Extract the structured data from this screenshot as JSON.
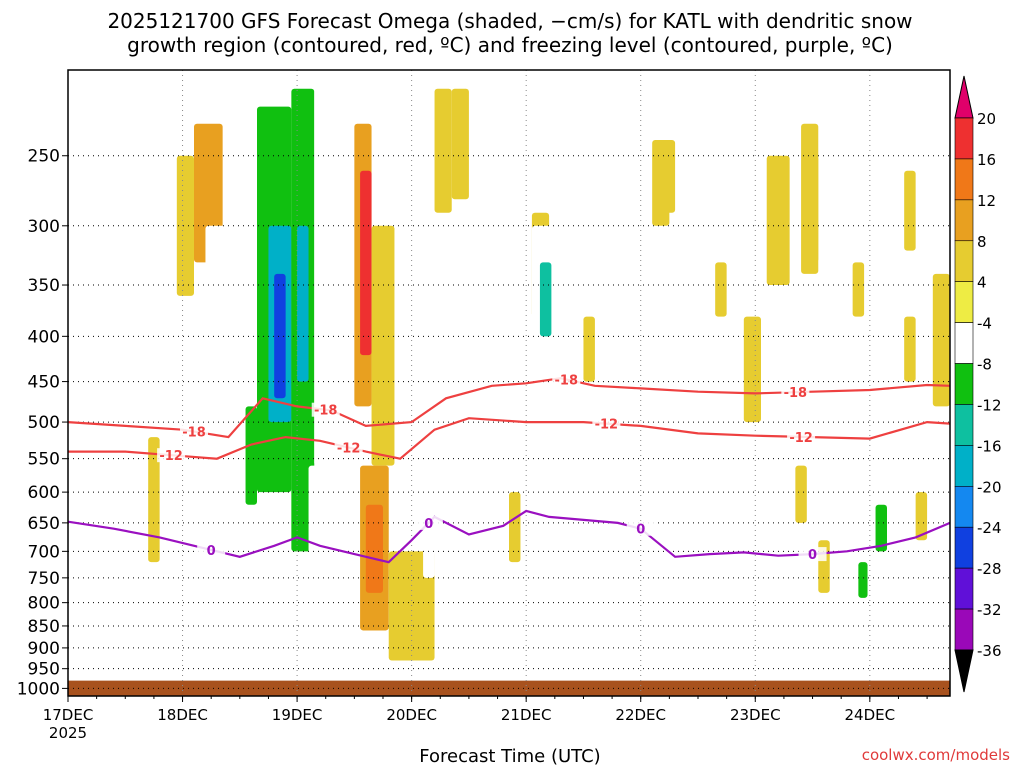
{
  "chart_data": {
    "type": "heatmap",
    "title_line1": "2025121700 GFS Forecast Omega (shaded, −cm/s) for KATL with dendritic snow",
    "title_line2": "growth region (contoured, red, ºC) and freezing level (contoured, purple, ºC)",
    "xlabel": "Forecast Time (UTC)",
    "ylabel": "",
    "credit": "coolwx.com/models",
    "x_ticks": [
      "17DEC",
      "18DEC",
      "19DEC",
      "20DEC",
      "21DEC",
      "22DEC",
      "23DEC",
      "24DEC"
    ],
    "x_year": "2025",
    "xlim_days": [
      0,
      7.7
    ],
    "y_ticks": [
      "250",
      "300",
      "350",
      "400",
      "450",
      "500",
      "550",
      "600",
      "650",
      "700",
      "750",
      "800",
      "850",
      "900",
      "950",
      "1000"
    ],
    "y_tick_values": [
      250,
      300,
      350,
      400,
      450,
      500,
      550,
      600,
      650,
      700,
      750,
      800,
      850,
      900,
      950,
      1000
    ],
    "ylim_hpa": [
      200,
      1020
    ],
    "y_scale": "log-pressure",
    "grid": "dotted",
    "colorbar": {
      "labels": [
        "20",
        "16",
        "12",
        "8",
        "4",
        "-4",
        "-8",
        "-12",
        "-16",
        "-20",
        "-24",
        "-28",
        "-32",
        "-36"
      ],
      "colors": [
        "#e0006a",
        "#ee3030",
        "#f07818",
        "#e8a020",
        "#e6cc30",
        "#eeec44",
        "#ffffff",
        "#10c010",
        "#0ec0a0",
        "#00b0c8",
        "#1488f0",
        "#1040e0",
        "#6010d8",
        "#9a08b8",
        "#a8a8a8",
        "#000000"
      ]
    },
    "contours": {
      "minus18": {
        "label": "-18",
        "color": "#ee4040",
        "x": [
          0,
          0.5,
          1.0,
          1.4,
          1.7,
          2.0,
          2.3,
          2.6,
          3.0,
          3.3,
          3.7,
          4.0,
          4.3,
          4.6,
          5.0,
          5.5,
          6.0,
          6.5,
          7.0,
          7.5,
          7.7
        ],
        "y": [
          500,
          505,
          510,
          520,
          470,
          480,
          485,
          505,
          500,
          470,
          455,
          452,
          446,
          455,
          458,
          462,
          464,
          462,
          460,
          454,
          455
        ],
        "label_x": [
          1.1,
          2.25,
          4.35,
          6.35
        ]
      },
      "minus12": {
        "label": "-12",
        "color": "#ee4040",
        "x": [
          0,
          0.5,
          0.9,
          1.3,
          1.6,
          1.9,
          2.2,
          2.6,
          2.9,
          3.2,
          3.5,
          4.0,
          4.5,
          5.0,
          5.5,
          6.0,
          6.5,
          7.0,
          7.5,
          7.7
        ],
        "y": [
          540,
          540,
          545,
          550,
          530,
          520,
          525,
          540,
          550,
          510,
          495,
          500,
          500,
          505,
          515,
          518,
          520,
          522,
          500,
          502
        ],
        "label_x": [
          0.9,
          2.45,
          4.7,
          6.4
        ]
      },
      "freezing_0C": {
        "label": "0",
        "color": "#9a10c0",
        "x": [
          0,
          0.4,
          0.8,
          1.2,
          1.5,
          1.8,
          2.0,
          2.2,
          2.5,
          2.8,
          3.0,
          3.2,
          3.5,
          3.8,
          4.0,
          4.2,
          4.5,
          4.8,
          5.0,
          5.3,
          5.6,
          5.9,
          6.2,
          6.5,
          6.8,
          7.1,
          7.4,
          7.7
        ],
        "y": [
          648,
          660,
          675,
          695,
          710,
          690,
          675,
          690,
          705,
          720,
          680,
          640,
          670,
          655,
          630,
          640,
          645,
          650,
          660,
          710,
          705,
          702,
          708,
          705,
          700,
          690,
          675,
          650
        ],
        "label_x": [
          1.25,
          3.15,
          5.0,
          6.5
        ]
      }
    },
    "omega_cells": [
      {
        "x0": 0.2,
        "x1": 0.45,
        "p0": 220,
        "p1": 420,
        "v": -6
      },
      {
        "x0": 0.55,
        "x1": 0.85,
        "p0": 240,
        "p1": 380,
        "v": -6
      },
      {
        "x0": 0.25,
        "x1": 0.35,
        "p0": 560,
        "p1": 860,
        "v": -6
      },
      {
        "x0": 0.95,
        "x1": 1.1,
        "p0": 250,
        "p1": 360,
        "v": 6
      },
      {
        "x0": 1.1,
        "x1": 1.35,
        "p0": 230,
        "p1": 330,
        "v": 10
      },
      {
        "x0": 1.2,
        "x1": 1.4,
        "p0": 300,
        "p1": 470,
        "v": -6
      },
      {
        "x0": 1.4,
        "x1": 1.65,
        "p0": 220,
        "p1": 520,
        "v": -8
      },
      {
        "x0": 1.55,
        "x1": 1.65,
        "p0": 480,
        "p1": 620,
        "v": -10
      },
      {
        "x0": 1.65,
        "x1": 1.95,
        "p0": 220,
        "p1": 600,
        "v": -12
      },
      {
        "x0": 1.75,
        "x1": 1.95,
        "p0": 300,
        "p1": 500,
        "v": -18
      },
      {
        "x0": 1.8,
        "x1": 1.9,
        "p0": 340,
        "p1": 470,
        "v": -26
      },
      {
        "x0": 1.95,
        "x1": 2.15,
        "p0": 210,
        "p1": 700,
        "v": -10
      },
      {
        "x0": 2.0,
        "x1": 2.1,
        "p0": 300,
        "p1": 450,
        "v": -20
      },
      {
        "x0": 2.15,
        "x1": 2.4,
        "p0": 210,
        "p1": 560,
        "v": -8
      },
      {
        "x0": 2.1,
        "x1": 2.2,
        "p0": 560,
        "p1": 900,
        "v": -6
      },
      {
        "x0": 2.45,
        "x1": 2.55,
        "p0": 400,
        "p1": 700,
        "v": -6
      },
      {
        "x0": 2.5,
        "x1": 2.65,
        "p0": 230,
        "p1": 480,
        "v": 8
      },
      {
        "x0": 2.55,
        "x1": 2.65,
        "p0": 260,
        "p1": 420,
        "v": 16
      },
      {
        "x0": 2.65,
        "x1": 2.85,
        "p0": 300,
        "p1": 560,
        "v": 6
      },
      {
        "x0": 2.55,
        "x1": 2.8,
        "p0": 560,
        "p1": 860,
        "v": 10
      },
      {
        "x0": 2.6,
        "x1": 2.75,
        "p0": 620,
        "p1": 780,
        "v": 14
      },
      {
        "x0": 2.8,
        "x1": 3.2,
        "p0": 700,
        "p1": 930,
        "v": 5
      },
      {
        "x0": 3.1,
        "x1": 3.2,
        "p0": 450,
        "p1": 750,
        "v": -6
      },
      {
        "x0": 3.2,
        "x1": 3.35,
        "p0": 210,
        "p1": 290,
        "v": 5
      },
      {
        "x0": 3.35,
        "x1": 3.5,
        "p0": 210,
        "p1": 280,
        "v": 6
      },
      {
        "x0": 3.4,
        "x1": 3.55,
        "p0": 430,
        "p1": 640,
        "v": -6
      },
      {
        "x0": 3.55,
        "x1": 3.65,
        "p0": 430,
        "p1": 600,
        "v": -5
      },
      {
        "x0": 3.65,
        "x1": 3.85,
        "p0": 300,
        "p1": 420,
        "v": -6
      },
      {
        "x0": 4.05,
        "x1": 4.2,
        "p0": 290,
        "p1": 380,
        "v": 6
      },
      {
        "x0": 4.05,
        "x1": 4.3,
        "p0": 300,
        "p1": 440,
        "v": -8
      },
      {
        "x0": 4.12,
        "x1": 4.22,
        "p0": 330,
        "p1": 400,
        "v": -13
      },
      {
        "x0": 4.3,
        "x1": 4.4,
        "p0": 350,
        "p1": 420,
        "v": -6
      },
      {
        "x0": 4.5,
        "x1": 4.6,
        "p0": 280,
        "p1": 420,
        "v": -6
      },
      {
        "x0": 4.5,
        "x1": 4.6,
        "p0": 380,
        "p1": 450,
        "v": 5
      },
      {
        "x0": 4.7,
        "x1": 4.8,
        "p0": 300,
        "p1": 380,
        "v": -6
      },
      {
        "x0": 5.1,
        "x1": 5.25,
        "p0": 240,
        "p1": 300,
        "v": 5
      },
      {
        "x0": 5.15,
        "x1": 5.3,
        "p0": 240,
        "p1": 290,
        "v": 6
      },
      {
        "x0": 5.55,
        "x1": 5.65,
        "p0": 260,
        "p1": 400,
        "v": -6
      },
      {
        "x0": 5.6,
        "x1": 5.75,
        "p0": 400,
        "p1": 470,
        "v": -7
      },
      {
        "x0": 5.65,
        "x1": 5.75,
        "p0": 330,
        "p1": 380,
        "v": 5
      },
      {
        "x0": 5.9,
        "x1": 6.05,
        "p0": 380,
        "p1": 500,
        "v": 5
      },
      {
        "x0": 6.1,
        "x1": 6.3,
        "p0": 250,
        "p1": 350,
        "v": 5
      },
      {
        "x0": 6.4,
        "x1": 6.55,
        "p0": 230,
        "p1": 340,
        "v": 5
      },
      {
        "x0": 6.45,
        "x1": 6.55,
        "p0": 250,
        "p1": 330,
        "v": 6
      },
      {
        "x0": 6.85,
        "x1": 6.95,
        "p0": 330,
        "p1": 380,
        "v": 5
      },
      {
        "x0": 7.3,
        "x1": 7.4,
        "p0": 260,
        "p1": 320,
        "v": 5
      },
      {
        "x0": 7.3,
        "x1": 7.4,
        "p0": 380,
        "p1": 450,
        "v": 5
      },
      {
        "x0": 7.55,
        "x1": 7.7,
        "p0": 340,
        "p1": 480,
        "v": 5
      },
      {
        "x0": 7.05,
        "x1": 7.15,
        "p0": 640,
        "p1": 780,
        "v": -6
      },
      {
        "x0": 6.8,
        "x1": 6.95,
        "p0": 700,
        "p1": 880,
        "v": -6
      },
      {
        "x0": 6.9,
        "x1": 6.98,
        "p0": 720,
        "p1": 790,
        "v": -12
      },
      {
        "x0": 7.05,
        "x1": 7.15,
        "p0": 620,
        "p1": 700,
        "v": -12
      },
      {
        "x0": 7.3,
        "x1": 7.4,
        "p0": 770,
        "p1": 820,
        "v": -6
      },
      {
        "x0": 6.35,
        "x1": 6.45,
        "p0": 560,
        "p1": 650,
        "v": 5
      },
      {
        "x0": 6.55,
        "x1": 6.65,
        "p0": 680,
        "p1": 780,
        "v": 5
      },
      {
        "x0": 7.4,
        "x1": 7.5,
        "p0": 600,
        "p1": 680,
        "v": 5
      },
      {
        "x0": 1.3,
        "x1": 1.4,
        "p0": 670,
        "p1": 720,
        "v": -6
      },
      {
        "x0": 0.7,
        "x1": 0.8,
        "p0": 520,
        "p1": 720,
        "v": 5
      },
      {
        "x0": 3.85,
        "x1": 3.95,
        "p0": 600,
        "p1": 720,
        "v": 5
      }
    ],
    "surface": {
      "label": "surface",
      "color": "#a8521e",
      "p_top": 980,
      "p_bottom": 1020
    }
  }
}
